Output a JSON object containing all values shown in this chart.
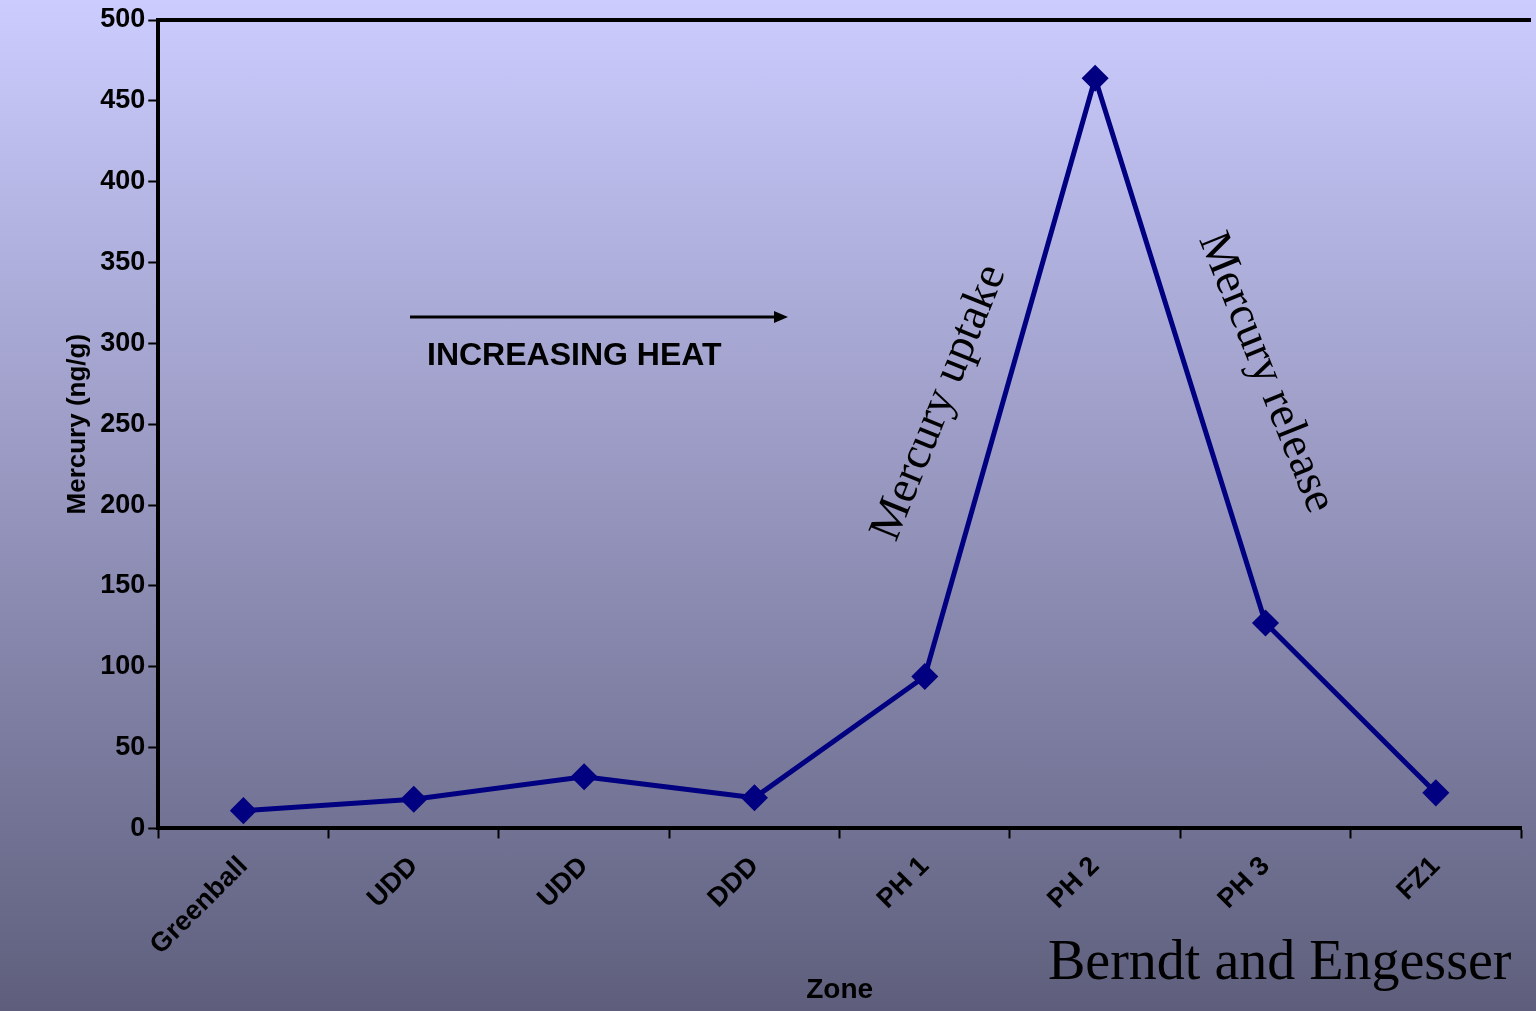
{
  "chart_data": {
    "type": "line",
    "xlabel": "Zone",
    "ylabel": "Mercury (ng/g)",
    "categories": [
      "Greenball",
      "UDD",
      "UDD",
      "DDD",
      "PH 1",
      "PH 2",
      "PH 3",
      "FZ1"
    ],
    "series": [
      {
        "color": "#000080",
        "values": [
          11,
          18,
          32,
          19,
          94,
          464,
          127,
          22
        ]
      }
    ],
    "ylim": [
      0,
      500
    ],
    "yticks": [
      0,
      50,
      100,
      150,
      200,
      250,
      300,
      350,
      400,
      450,
      500
    ],
    "grid": false,
    "legend": false,
    "marker": "diamond",
    "line_style": "solid",
    "annotations": [
      "INCREASING HEAT",
      "Mercury uptake",
      "Mercury release",
      "Berndt and Engesser"
    ]
  }
}
